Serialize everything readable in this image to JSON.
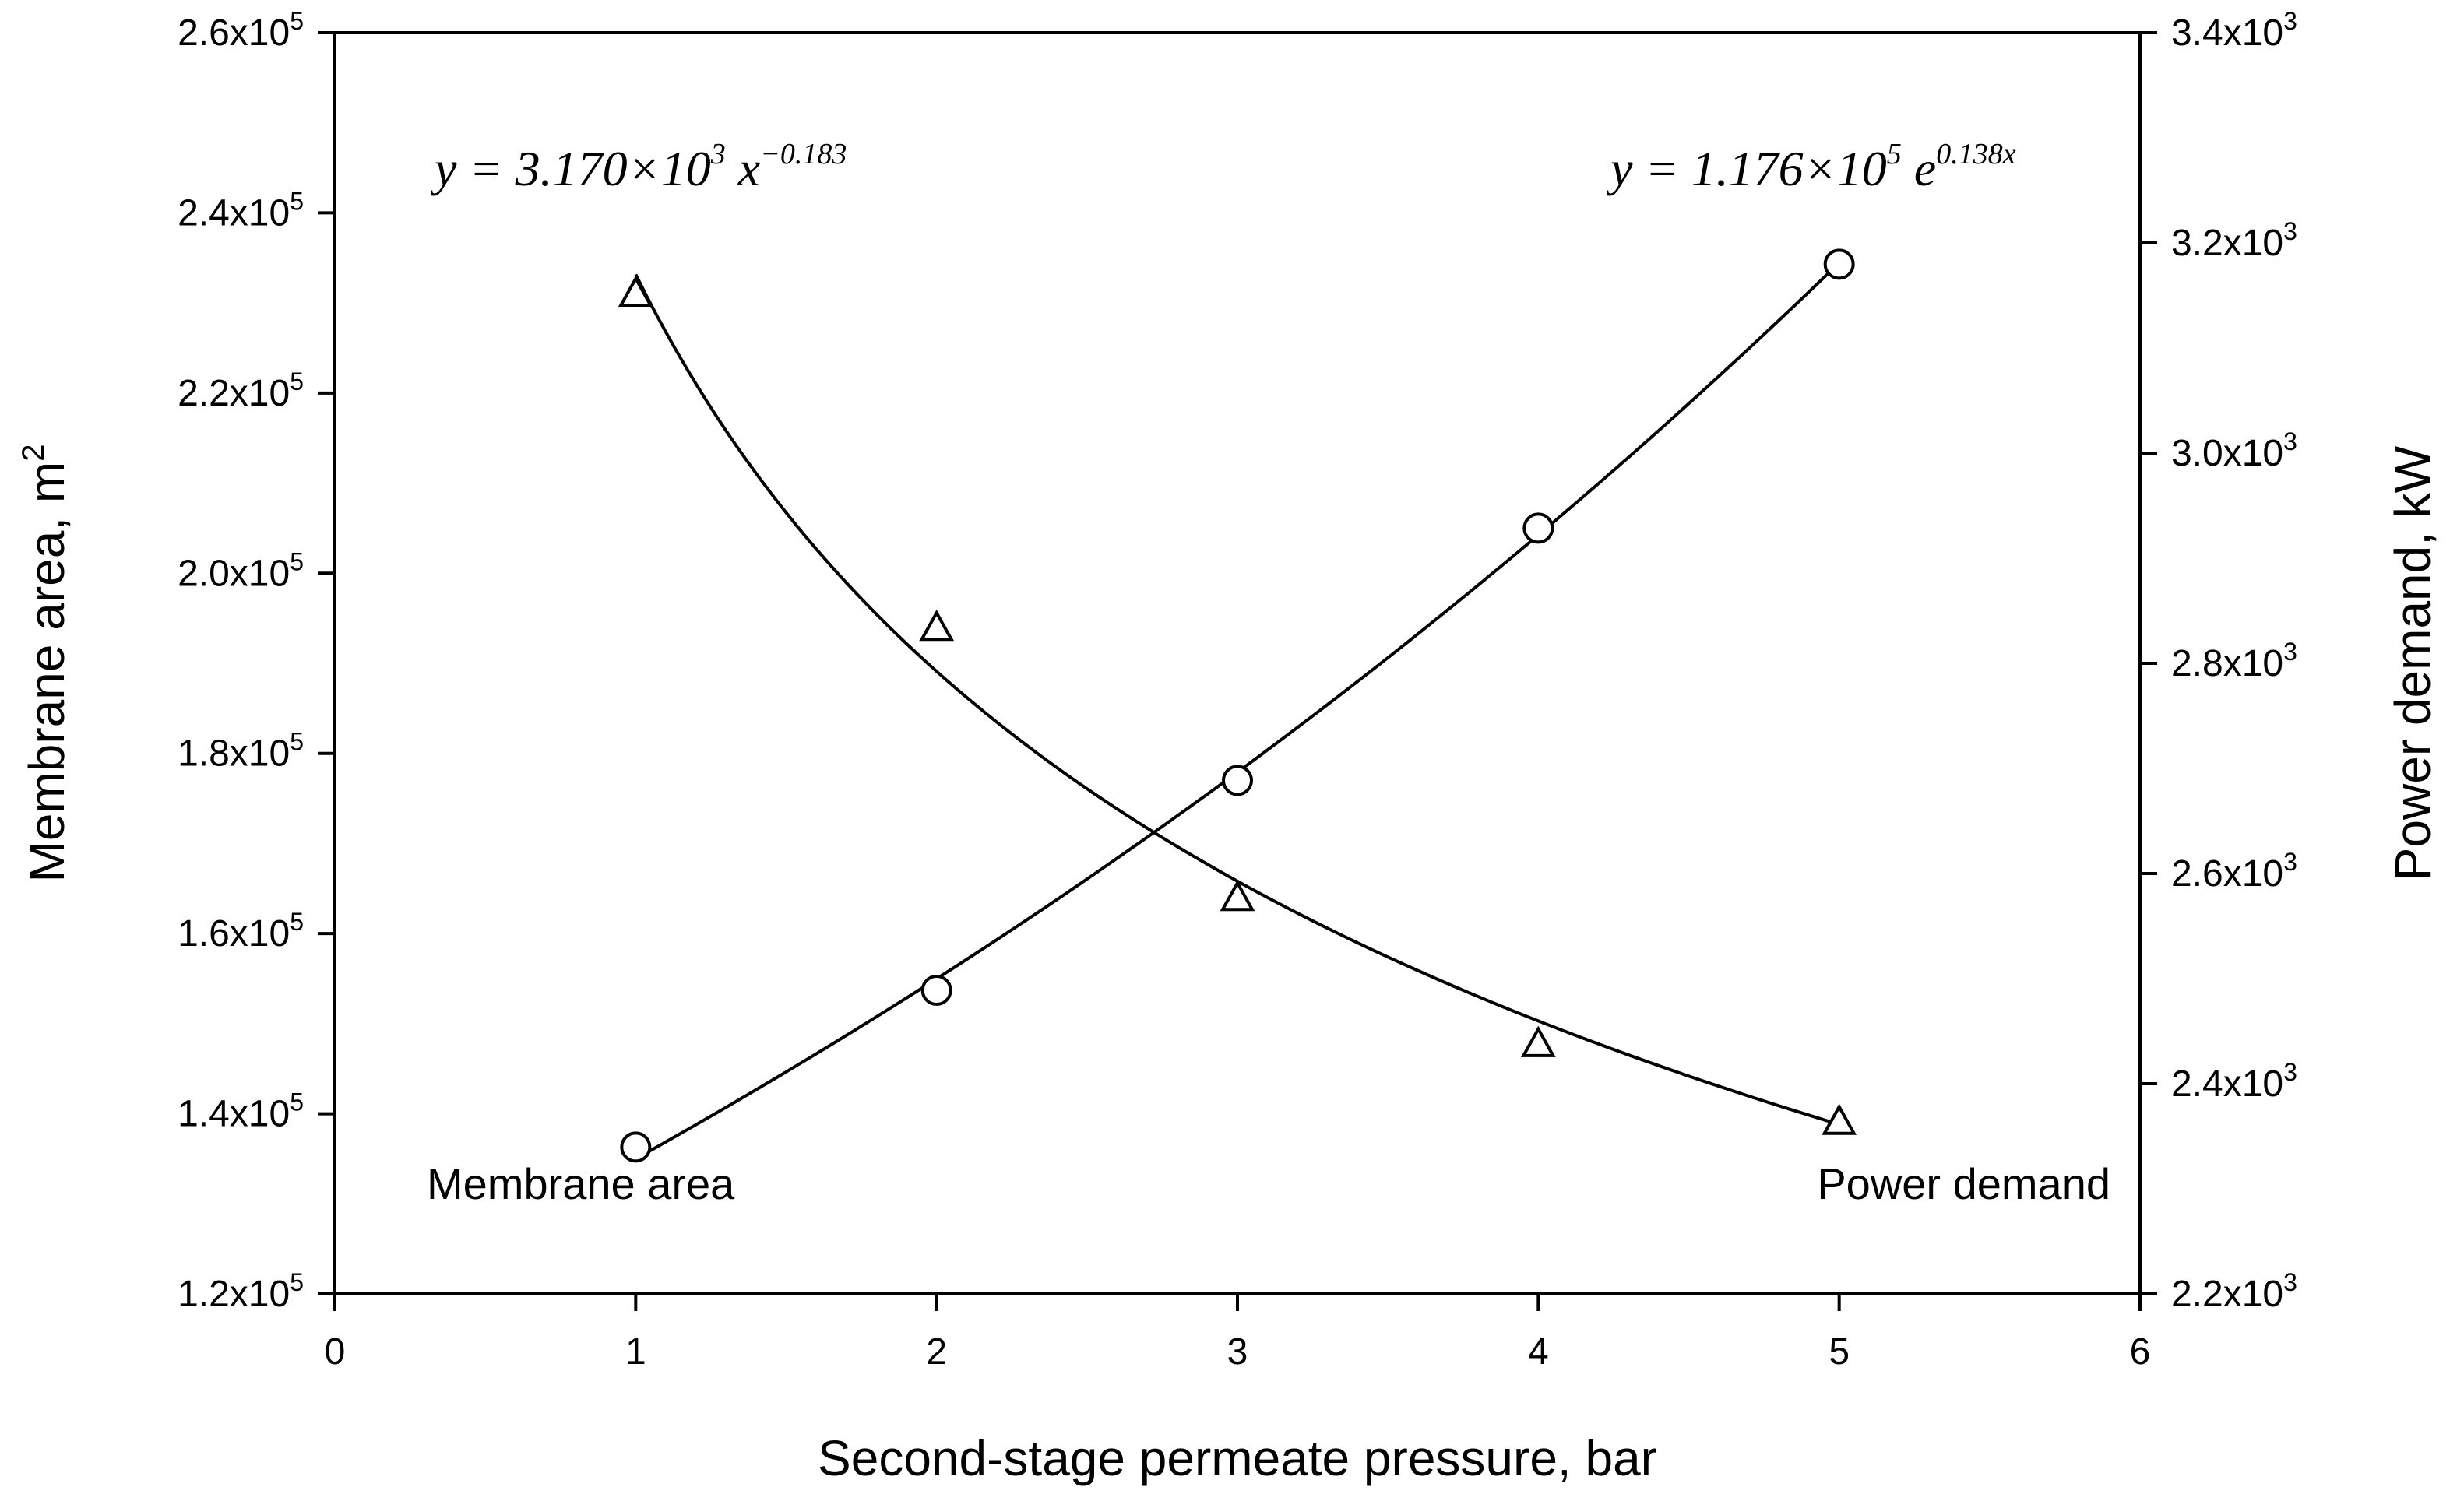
{
  "chart_data": {
    "type": "scatter",
    "x_axis": {
      "label": "Second-stage permeate pressure, bar",
      "range": [
        0,
        6
      ],
      "ticks": [
        0,
        1,
        2,
        3,
        4,
        5,
        6
      ],
      "tick_labels": [
        "0",
        "1",
        "2",
        "3",
        "4",
        "5",
        "6"
      ]
    },
    "y_left_axis": {
      "label_main": "Membrane area, m",
      "label_sup": "2",
      "range": [
        120000,
        260000
      ],
      "ticks": [
        120000,
        140000,
        160000,
        180000,
        200000,
        220000,
        240000,
        260000
      ],
      "tick_mantissas": [
        "1.2x10",
        "1.4x10",
        "1.6x10",
        "1.8x10",
        "2.0x10",
        "2.2x10",
        "2.4x10",
        "2.6x10"
      ],
      "tick_exponent": "5"
    },
    "y_right_axis": {
      "label": "Power demand, kW",
      "range": [
        2200,
        3400
      ],
      "ticks": [
        2200,
        2400,
        2600,
        2800,
        3000,
        3200,
        3400
      ],
      "tick_mantissas": [
        "2.2x10",
        "2.4x10",
        "2.6x10",
        "2.8x10",
        "3.0x10",
        "3.2x10",
        "3.4x10"
      ],
      "tick_exponent": "3"
    },
    "series": [
      {
        "name": "Membrane area",
        "axis": "left",
        "marker": "circle",
        "x": [
          1,
          2,
          3,
          4,
          5
        ],
        "y": [
          136300,
          153700,
          177000,
          205000,
          234300
        ],
        "fit": {
          "type": "exponential",
          "a": 117600,
          "b": 0.138
        },
        "label": "Membrane area"
      },
      {
        "name": "Power demand",
        "axis": "right",
        "marker": "triangle",
        "x": [
          1,
          2,
          3,
          4,
          5
        ],
        "y": [
          3152,
          2834,
          2577,
          2438,
          2364
        ],
        "fit": {
          "type": "power",
          "a": 3170,
          "b": -0.183
        },
        "label": "Power demand"
      }
    ],
    "equations": {
      "power": {
        "prefix": "y = 3.170×10",
        "exp10": "3",
        "mid": " x",
        "exp_var": "−0.183"
      },
      "exponential": {
        "prefix": "y = 1.176×10",
        "exp10": "5",
        "mid": " e",
        "exp_var": "0.138x"
      }
    },
    "grid": false
  }
}
